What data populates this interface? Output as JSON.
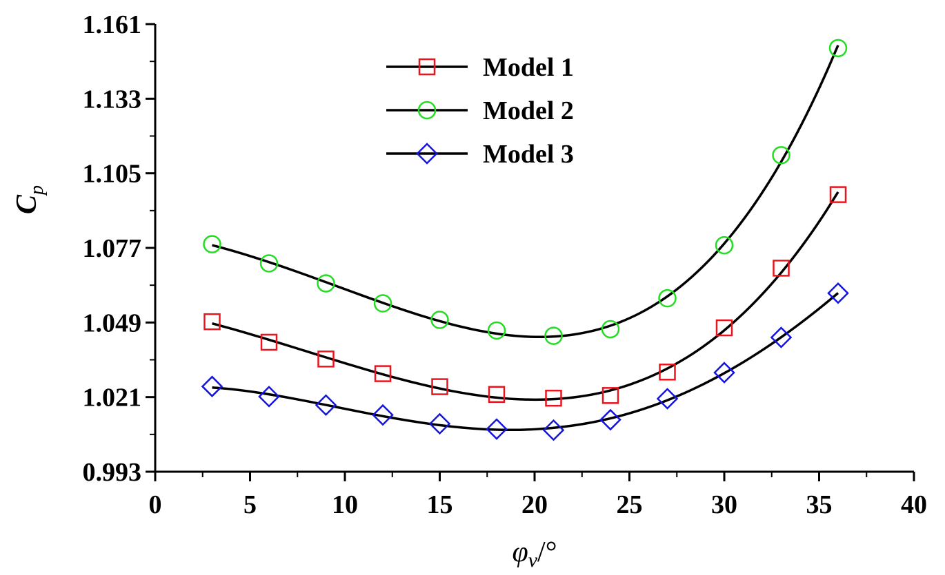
{
  "chart_data": {
    "type": "line",
    "xlabel": {
      "main": "φ",
      "sub": "v",
      "unit": "/°"
    },
    "ylabel": {
      "main": "C",
      "sub": "p"
    },
    "xlim": [
      0,
      40
    ],
    "ylim": [
      0.993,
      1.161
    ],
    "x_ticks": [
      "0",
      "5",
      "10",
      "15",
      "20",
      "25",
      "30",
      "35",
      "40"
    ],
    "y_ticks": [
      "0.993",
      "1.021",
      "1.049",
      "1.077",
      "1.105",
      "1.133",
      "1.161"
    ],
    "grid": false,
    "legend_position": "top-center",
    "x": [
      3,
      6,
      9,
      12,
      15,
      18,
      21,
      24,
      27,
      30,
      33,
      36
    ],
    "series": [
      {
        "name": "Model 1",
        "marker": "square",
        "color": "#e8141e",
        "values": [
          1.0493,
          1.0416,
          1.0353,
          1.0298,
          1.0249,
          1.022,
          1.0206,
          1.0216,
          1.0304,
          1.047,
          1.0694,
          1.097
        ]
      },
      {
        "name": "Model 2",
        "marker": "circle",
        "color": "#22dd22",
        "values": [
          1.0784,
          1.0712,
          1.0637,
          1.0562,
          1.05,
          1.046,
          1.044,
          1.0465,
          1.0581,
          1.078,
          1.1118,
          1.152
        ]
      },
      {
        "name": "Model 3",
        "marker": "diamond",
        "color": "#1414e0",
        "values": [
          1.025,
          1.0212,
          1.018,
          1.0143,
          1.011,
          1.009,
          1.0086,
          1.0125,
          1.0204,
          1.0302,
          1.0434,
          1.06
        ]
      }
    ]
  }
}
